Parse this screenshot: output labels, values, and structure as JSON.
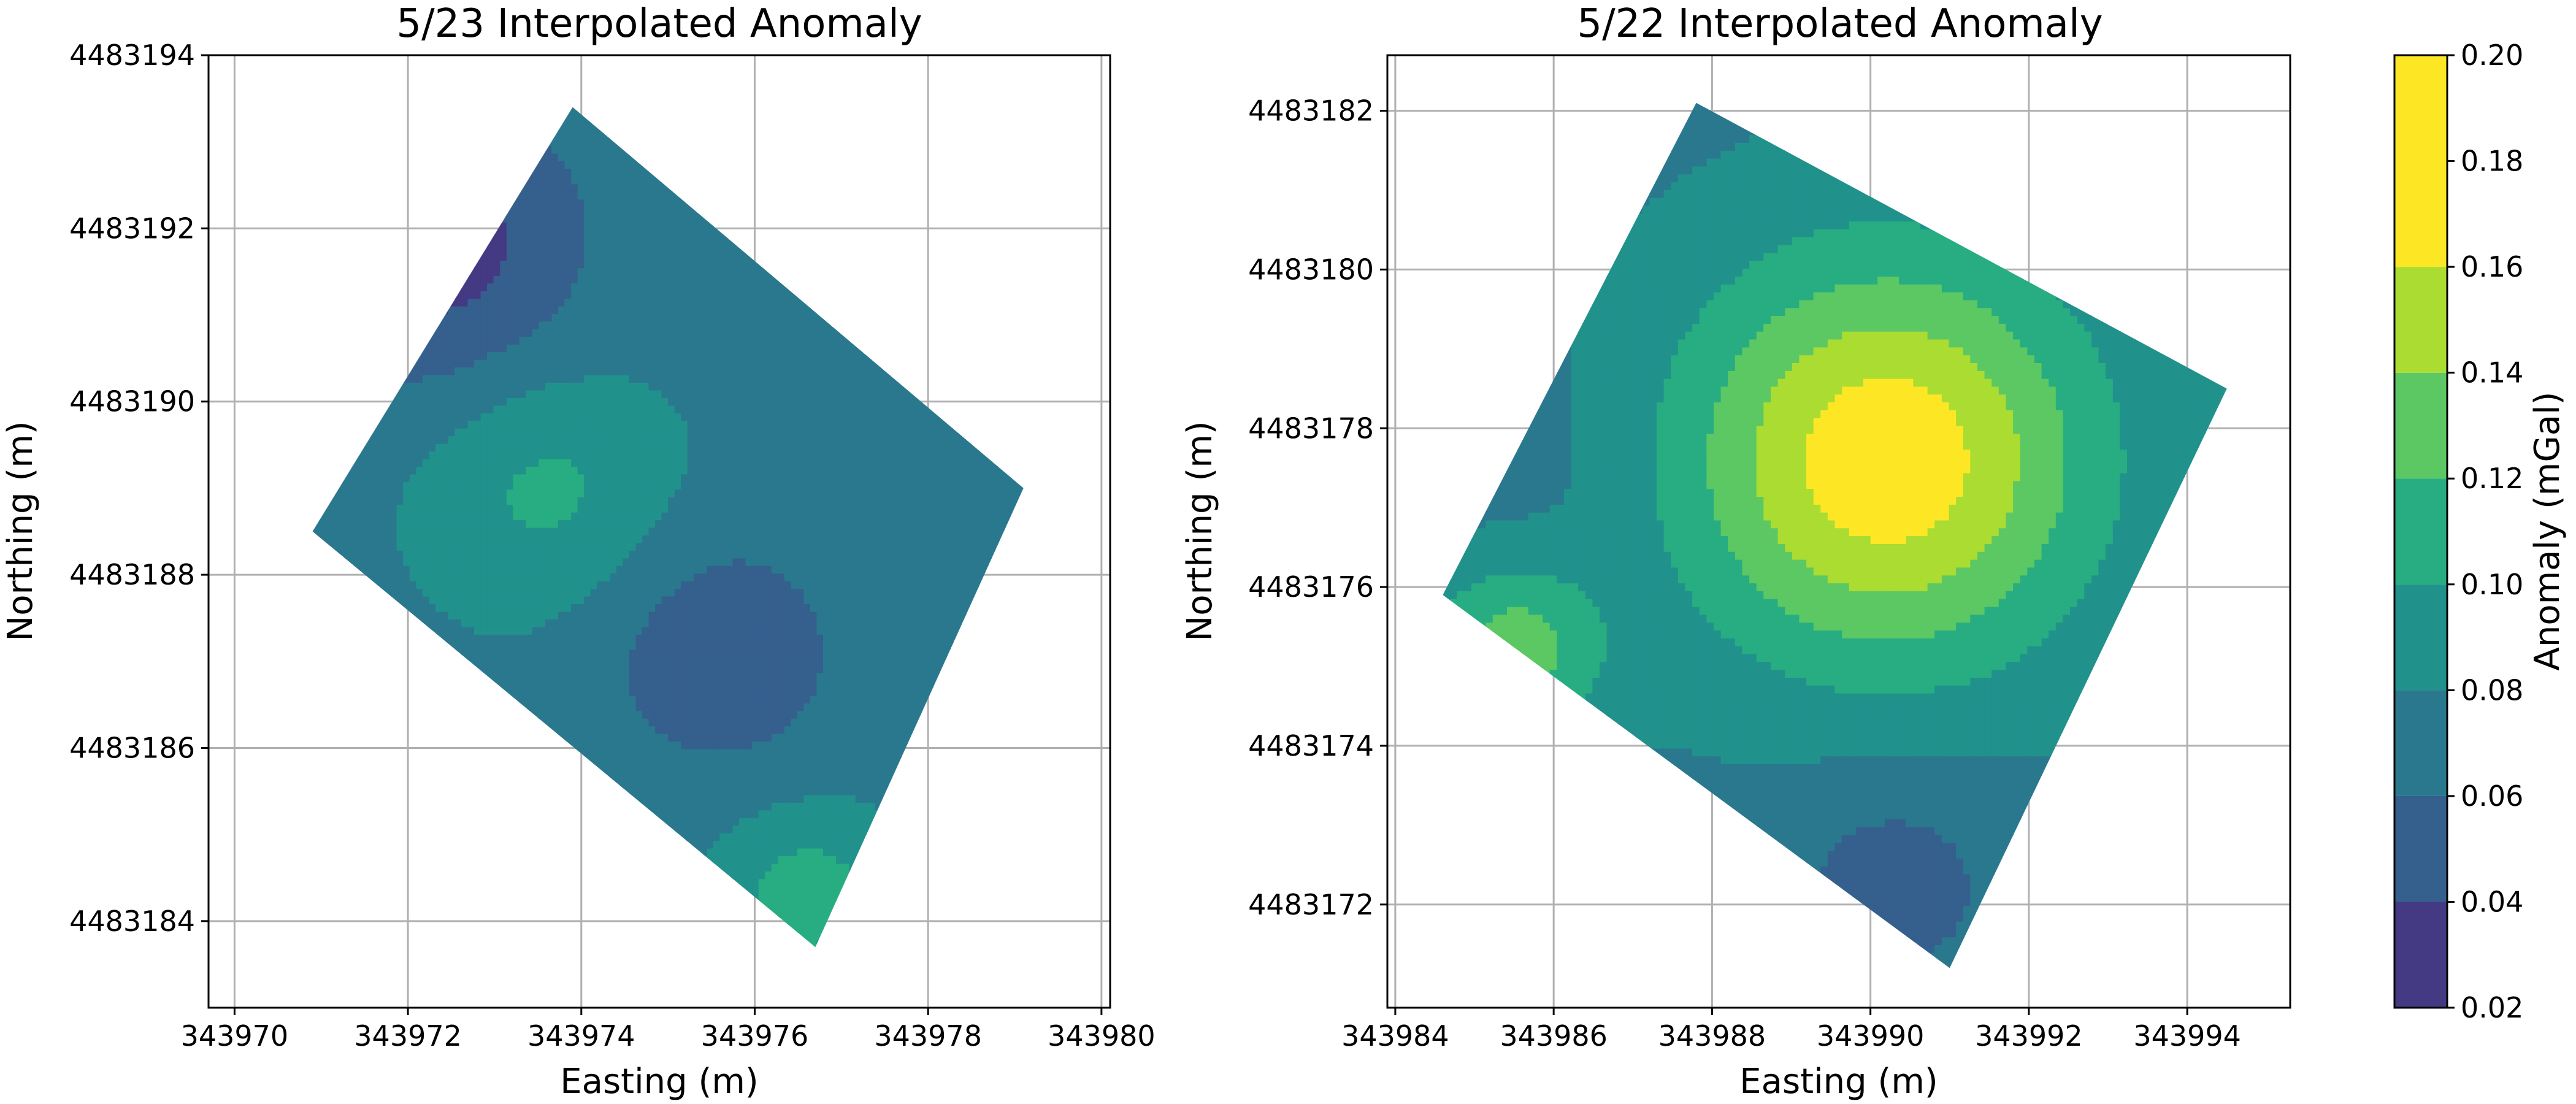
{
  "chart_data": [
    {
      "type": "heatmap",
      "subtype": "filled-contour",
      "title": "5/23 Interpolated Anomaly",
      "xlabel": "Easting (m)",
      "ylabel": "Northing (m)",
      "xlim": [
        343969.7,
        343980.1
      ],
      "ylim": [
        4483183.0,
        4483194.0
      ],
      "xticks": [
        "343970",
        "343972",
        "343974",
        "343976",
        "343978",
        "343980"
      ],
      "yticks": [
        "4483184",
        "4483186",
        "4483188",
        "4483190",
        "4483192",
        "4483194"
      ],
      "grid": true,
      "outline": [
        [
          343970.9,
          4483188.5
        ],
        [
          343973.9,
          4483193.4
        ],
        [
          343979.1,
          4483189.0
        ],
        [
          343976.7,
          4483183.7
        ]
      ],
      "features": [
        {
          "x": 343972.3,
          "y": 4483191.8,
          "value": 0.03,
          "spread": 1.2
        },
        {
          "x": 343973.6,
          "y": 4483189.0,
          "value": 0.105,
          "spread": 1.0
        },
        {
          "x": 343975.6,
          "y": 4483187.1,
          "value": 0.045,
          "spread": 1.0
        },
        {
          "x": 343976.6,
          "y": 4483184.3,
          "value": 0.11,
          "spread": 0.7
        }
      ]
    },
    {
      "type": "heatmap",
      "subtype": "filled-contour",
      "title": "5/22 Interpolated Anomaly",
      "xlabel": "Easting (m)",
      "ylabel": "Northing (m)",
      "xlim": [
        343983.9,
        343995.3
      ],
      "ylim": [
        4483170.7,
        4483182.7
      ],
      "xticks": [
        "343984",
        "343986",
        "343988",
        "343990",
        "343992",
        "343994"
      ],
      "yticks": [
        "4483172",
        "4483174",
        "4483176",
        "4483178",
        "4483180",
        "4483182"
      ],
      "grid": true,
      "outline": [
        [
          343984.6,
          4483175.9
        ],
        [
          343987.8,
          4483182.1
        ],
        [
          343994.5,
          4483178.5
        ],
        [
          343991.0,
          4483171.2
        ]
      ],
      "features": [
        {
          "x": 343990.2,
          "y": 4483177.6,
          "value": 0.175,
          "spread": 1.8
        },
        {
          "x": 343990.3,
          "y": 4483172.3,
          "value": 0.05,
          "spread": 1.0
        },
        {
          "x": 343985.8,
          "y": 4483177.4,
          "value": 0.07,
          "spread": 1.1
        },
        {
          "x": 343985.5,
          "y": 4483175.2,
          "value": 0.13,
          "spread": 0.8
        }
      ]
    }
  ],
  "colorbar": {
    "label": "Anomaly (mGal)",
    "ticks": [
      "0.02",
      "0.04",
      "0.06",
      "0.08",
      "0.10",
      "0.12",
      "0.14",
      "0.16",
      "0.18",
      "0.20"
    ],
    "levels": [
      0.02,
      0.04,
      0.06,
      0.08,
      0.1,
      0.12,
      0.14,
      0.16,
      0.2
    ],
    "colors": [
      "#443983",
      "#355f8d",
      "#2a788e",
      "#21918c",
      "#27ad81",
      "#5cc863",
      "#aadc32",
      "#fde725"
    ]
  }
}
